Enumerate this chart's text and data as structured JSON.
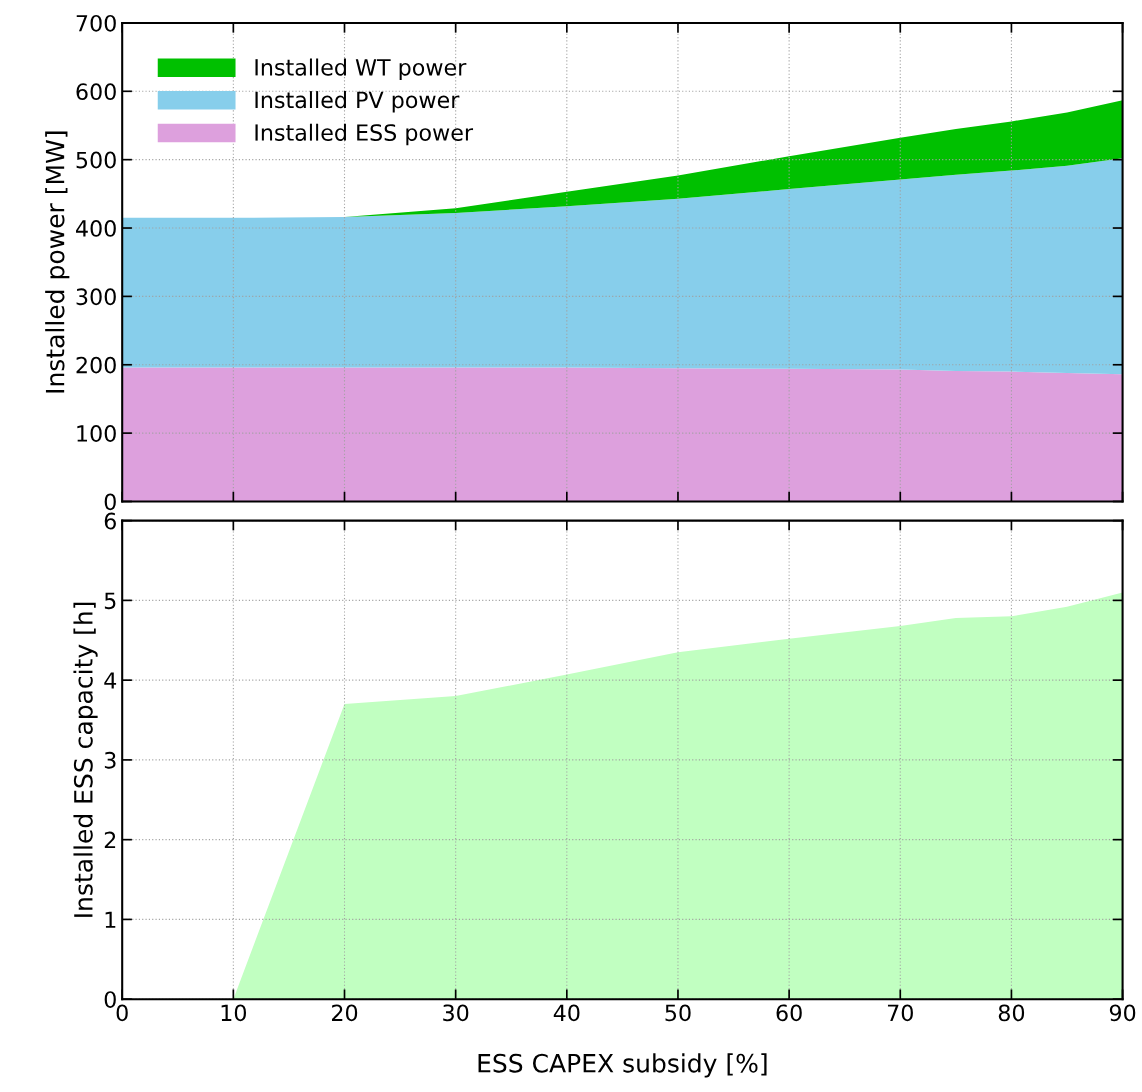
{
  "chart_data": [
    {
      "type": "area",
      "stacked": true,
      "ylabel": "Installed power [MW]",
      "x": [
        0,
        10,
        20,
        30,
        40,
        50,
        60,
        70,
        75,
        80,
        85,
        90
      ],
      "series": [
        {
          "name": "Installed ESS power",
          "color": "#dda0dd",
          "values": [
            196,
            196,
            196,
            196,
            196,
            195,
            194,
            193,
            191,
            190,
            188,
            186
          ]
        },
        {
          "name": "Installed PV power",
          "color": "#87ceeb",
          "values": [
            219,
            219,
            220,
            226,
            236,
            248,
            263,
            278,
            287,
            294,
            303,
            316
          ]
        },
        {
          "name": "Installed WT power",
          "color": "#00c000",
          "values": [
            0,
            0,
            0,
            7,
            21,
            34,
            48,
            61,
            67,
            72,
            78,
            85
          ]
        }
      ],
      "xlim": [
        0,
        90
      ],
      "xticks": [
        0,
        10,
        20,
        30,
        40,
        50,
        60,
        70,
        80,
        90
      ],
      "ylim": [
        0,
        700
      ],
      "yticks": [
        0,
        100,
        200,
        300,
        400,
        500,
        600,
        700
      ],
      "grid": true,
      "legend": "top left",
      "tick_labels": "y"
    },
    {
      "type": "area",
      "xlabel": "ESS CAPEX subsidy [%]",
      "ylabel": "Installed ESS capacity [h]",
      "x": [
        0,
        10,
        20,
        30,
        40,
        50,
        60,
        70,
        75,
        80,
        85,
        90
      ],
      "series": [
        {
          "color": "#c1ffc1",
          "values": [
            0,
            0,
            3.7,
            3.8,
            4.07,
            4.35,
            4.52,
            4.68,
            4.78,
            4.8,
            4.92,
            5.1
          ]
        }
      ],
      "xlim": [
        0,
        90
      ],
      "xticks": [
        0,
        10,
        20,
        30,
        40,
        50,
        60,
        70,
        80,
        90
      ],
      "ylim": [
        0,
        6
      ],
      "yticks": [
        0,
        1,
        2,
        3,
        4,
        5,
        6
      ],
      "grid": true
    }
  ]
}
